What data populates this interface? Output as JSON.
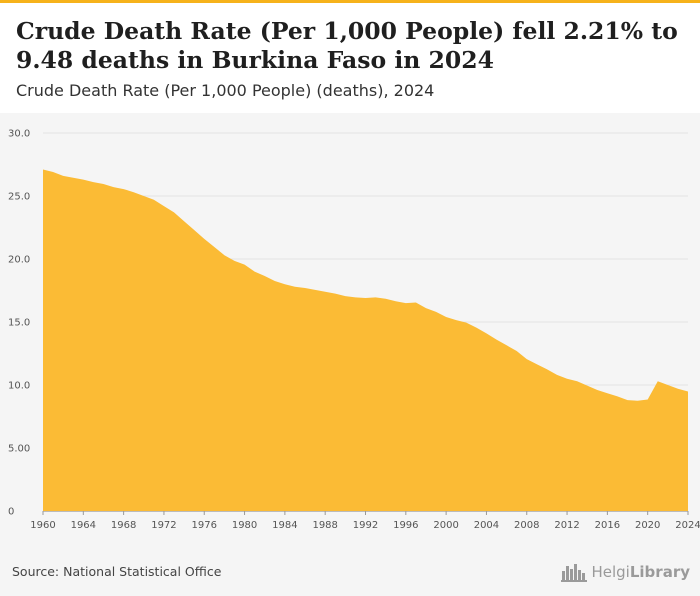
{
  "header": {
    "title": "Crude Death Rate (Per 1,000 People) fell 2.21% to 9.48 deaths in Burkina Faso in 2024",
    "subtitle": "Crude Death Rate (Per 1,000 People) (deaths), 2024"
  },
  "footer": {
    "source": "Source: National Statistical Office",
    "logo_text_light": "Helgi",
    "logo_text_bold": "Library",
    "logo_icon": "city-skyline-icon"
  },
  "colors": {
    "area_fill": "#fbbb35",
    "accent_bar": "#f6b21b",
    "grid": "#e3e3e3"
  },
  "chart_data": {
    "type": "area",
    "title": "Crude Death Rate (Per 1,000 People) fell 2.21% to 9.48 deaths in Burkina Faso in 2024",
    "subtitle": "Crude Death Rate (Per 1,000 People) (deaths), 2024",
    "xlabel": "",
    "ylabel": "",
    "x": [
      1960,
      1961,
      1962,
      1963,
      1964,
      1965,
      1966,
      1967,
      1968,
      1969,
      1970,
      1971,
      1972,
      1973,
      1974,
      1975,
      1976,
      1977,
      1978,
      1979,
      1980,
      1981,
      1982,
      1983,
      1984,
      1985,
      1986,
      1987,
      1988,
      1989,
      1990,
      1991,
      1992,
      1993,
      1994,
      1995,
      1996,
      1997,
      1998,
      1999,
      2000,
      2001,
      2002,
      2003,
      2004,
      2005,
      2006,
      2007,
      2008,
      2009,
      2010,
      2011,
      2012,
      2013,
      2014,
      2015,
      2016,
      2017,
      2018,
      2019,
      2020,
      2021,
      2022,
      2023,
      2024
    ],
    "series": [
      {
        "values": [
          27.1,
          26.9,
          26.6,
          26.45,
          26.3,
          26.1,
          25.95,
          25.7,
          25.55,
          25.3,
          25.0,
          24.7,
          24.2,
          23.7,
          23.0,
          22.3,
          21.6,
          20.95,
          20.3,
          19.85,
          19.55,
          19.0,
          18.65,
          18.25,
          18.0,
          17.8,
          17.7,
          17.55,
          17.4,
          17.25,
          17.05,
          16.95,
          16.9,
          16.95,
          16.85,
          16.65,
          16.5,
          16.55,
          16.1,
          15.8,
          15.4,
          15.15,
          14.95,
          14.55,
          14.1,
          13.6,
          13.15,
          12.7,
          12.05,
          11.65,
          11.25,
          10.8,
          10.5,
          10.3,
          9.95,
          9.6,
          9.35,
          9.1,
          8.8,
          8.75,
          8.85,
          10.3,
          10.0,
          9.7,
          9.48
        ]
      }
    ],
    "xlim": [
      1960,
      2024
    ],
    "ylim": [
      0,
      30
    ],
    "x_ticks": [
      "1960",
      "1964",
      "1968",
      "1972",
      "1976",
      "1980",
      "1984",
      "1988",
      "1992",
      "1996",
      "2000",
      "2004",
      "2008",
      "2012",
      "2016",
      "2020",
      "2024"
    ],
    "y_ticks": [
      "0",
      "5.00",
      "10.0",
      "15.0",
      "20.0",
      "25.0",
      "30.0"
    ],
    "y_tick_values": [
      0,
      5,
      10,
      15,
      20,
      25,
      30
    ],
    "grid": true,
    "legend": "none"
  }
}
